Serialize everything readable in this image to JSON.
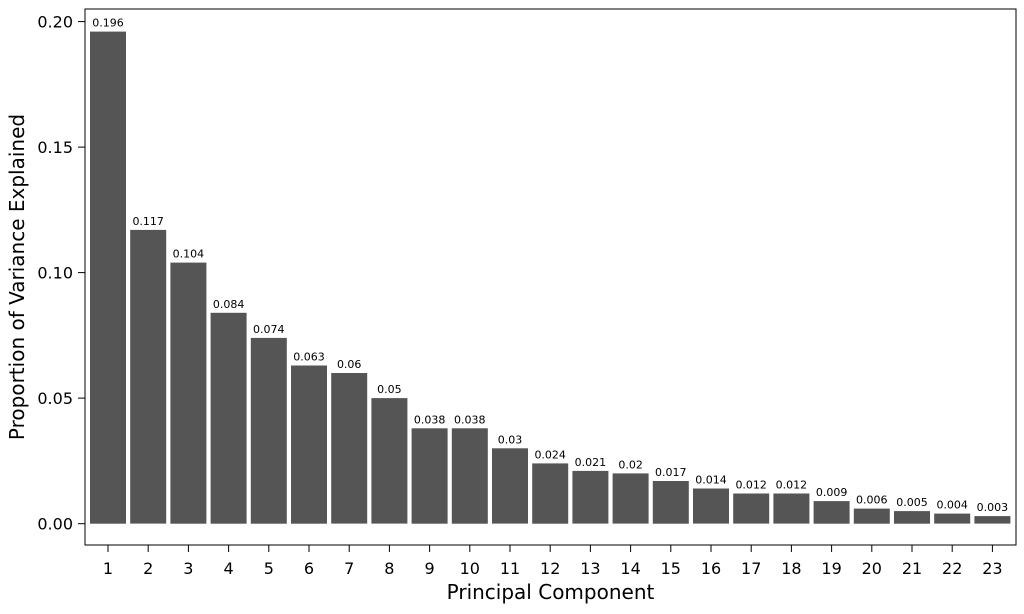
{
  "chart_data": {
    "type": "bar",
    "categories": [
      "1",
      "2",
      "3",
      "4",
      "5",
      "6",
      "7",
      "8",
      "9",
      "10",
      "11",
      "12",
      "13",
      "14",
      "15",
      "16",
      "17",
      "18",
      "19",
      "20",
      "21",
      "22",
      "23"
    ],
    "values": [
      0.196,
      0.117,
      0.104,
      0.084,
      0.074,
      0.063,
      0.06,
      0.05,
      0.038,
      0.038,
      0.03,
      0.024,
      0.021,
      0.02,
      0.017,
      0.014,
      0.012,
      0.012,
      0.009,
      0.006,
      0.005,
      0.004,
      0.003
    ],
    "value_labels": [
      "0.196",
      "0.117",
      "0.104",
      "0.084",
      "0.074",
      "0.063",
      "0.06",
      "0.05",
      "0.038",
      "0.038",
      "0.03",
      "0.024",
      "0.021",
      "0.02",
      "0.017",
      "0.014",
      "0.012",
      "0.012",
      "0.009",
      "0.006",
      "0.005",
      "0.004",
      "0.003"
    ],
    "xlabel": "Principal Component",
    "ylabel": "Proportion of Variance Explained",
    "ylim": [
      -0.0085,
      0.205
    ],
    "yticks": [
      0.0,
      0.05,
      0.1,
      0.15,
      0.2
    ],
    "ytick_labels": [
      "0.00",
      "0.05",
      "0.10",
      "0.15",
      "0.20"
    ],
    "grid": false,
    "legend": "none",
    "bar_color": "#555555",
    "frame_color": "#000000"
  }
}
